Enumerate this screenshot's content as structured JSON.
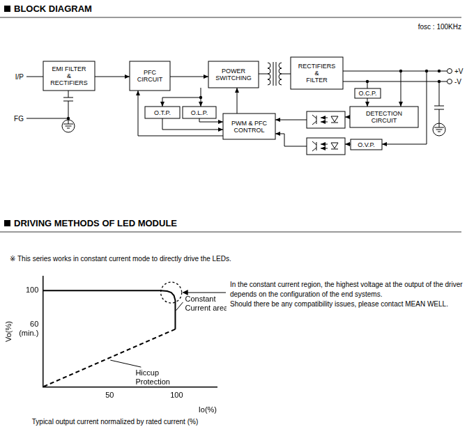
{
  "header": {
    "title": "BLOCK DIAGRAM"
  },
  "block_diagram": {
    "fosc": "fosc : 100KHz",
    "nodes": {
      "emi": [
        "EMI FILTER",
        "&",
        "RECTIFIERS"
      ],
      "pfc": [
        "PFC",
        "CIRCUIT"
      ],
      "switching": [
        "POWER",
        "SWITCHING"
      ],
      "rectifiers": [
        "RECTIFIERS",
        "&",
        "FILTER"
      ],
      "ocp": [
        "O.C.P."
      ],
      "detection": [
        "DETECTION",
        "CIRCUIT"
      ],
      "otp": [
        "O.T.P."
      ],
      "olp": [
        "O.L.P."
      ],
      "pwm": [
        "PWM & PFC",
        "CONTROL"
      ],
      "ovp": [
        "O.V.P."
      ]
    },
    "terminals": {
      "input": "I/P",
      "ground": "FG",
      "positive": "+V",
      "negative": "-V"
    }
  },
  "driving": {
    "title": "DRIVING METHODS OF LED MODULE",
    "note": "※ This series works in constant current mode to directly drive the LEDs.",
    "description": [
      "In the constant current region, the highest voltage at the output of the driver",
      "depends on the configuration of the end systems.",
      "Should there be any compatibility issues, please contact MEAN WELL."
    ]
  },
  "chart_data": {
    "type": "line",
    "x_label": "Io(%)",
    "y_label": "Vo(%)",
    "caption": "Typical output current normalized by rated current (%)",
    "xlim": [
      0,
      130
    ],
    "xticks": [
      50,
      100
    ],
    "ylim": [
      0,
      115
    ],
    "yticks": [
      {
        "value": 60,
        "label": [
          "60",
          "(min.)"
        ]
      },
      100
    ],
    "grid": false,
    "series": [
      {
        "annotation": [
          "Constant",
          "Current area"
        ],
        "color": "#000000",
        "line_style": "solid",
        "x": [
          0,
          88,
          93,
          96,
          98,
          99,
          99
        ],
        "values": [
          100,
          100,
          99.5,
          98,
          95,
          90,
          60
        ]
      },
      {
        "annotation": [
          "Hiccup",
          "Protection"
        ],
        "color": "#000000",
        "line_style": "dashed",
        "x": [
          99,
          0
        ],
        "values": [
          60,
          0
        ]
      }
    ]
  }
}
